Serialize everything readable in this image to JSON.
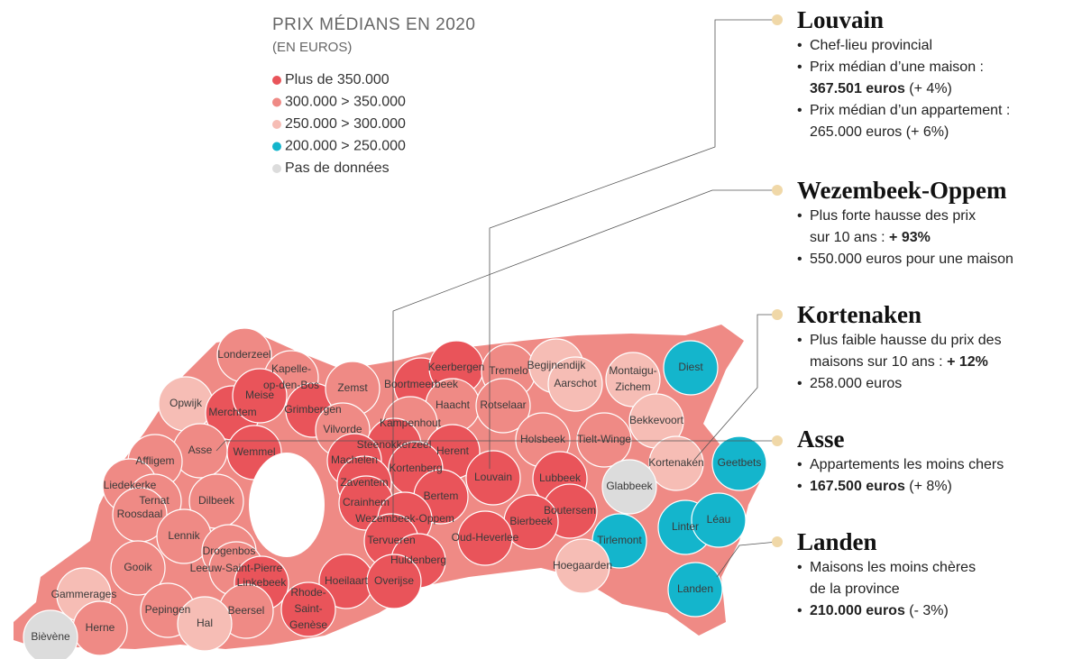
{
  "legend": {
    "title": "PRIX MÉDIANS EN 2020",
    "subtitle": "(EN EUROS)",
    "items": [
      {
        "label": "Plus de 350.000",
        "color": "#e9545a"
      },
      {
        "label": "300.000 > 350.000",
        "color": "#ef8a85"
      },
      {
        "label": "250.000 > 300.000",
        "color": "#f6bdb5"
      },
      {
        "label": "200.000 > 250.000",
        "color": "#14b5cc"
      },
      {
        "label": "Pas de données",
        "color": "#dcdcdc"
      }
    ]
  },
  "municipalities": [
    {
      "lines": [
        "Londerzeel"
      ],
      "color": "#ef8a85"
    },
    {
      "lines": [
        "Kapelle-",
        "op-den-Bos"
      ],
      "color": "#ef8a85"
    },
    {
      "lines": [
        "Opwijk"
      ],
      "color": "#f6bdb5"
    },
    {
      "lines": [
        "Merchtem"
      ],
      "color": "#e9545a"
    },
    {
      "lines": [
        "Meise"
      ],
      "color": "#e9545a"
    },
    {
      "lines": [
        "Grimbergen"
      ],
      "color": "#e9545a"
    },
    {
      "lines": [
        "Zemst"
      ],
      "color": "#ef8a85"
    },
    {
      "lines": [
        "Boortmeerbeek"
      ],
      "color": "#e9545a"
    },
    {
      "lines": [
        "Keerbergen"
      ],
      "color": "#e9545a"
    },
    {
      "lines": [
        "Tremelo"
      ],
      "color": "#ef8a85"
    },
    {
      "lines": [
        "Begijnendijk"
      ],
      "color": "#f6bdb5"
    },
    {
      "lines": [
        "Aarschot"
      ],
      "color": "#f6bdb5"
    },
    {
      "lines": [
        "Montaigu-",
        "Zichem"
      ],
      "color": "#f6bdb5"
    },
    {
      "lines": [
        "Diest"
      ],
      "color": "#14b5cc"
    },
    {
      "lines": [
        "Haacht"
      ],
      "color": "#ef8a85"
    },
    {
      "lines": [
        "Rotselaar"
      ],
      "color": "#ef8a85"
    },
    {
      "lines": [
        "Bekkevoort"
      ],
      "color": "#f6bdb5"
    },
    {
      "lines": [
        "Vilvorde"
      ],
      "color": "#ef8a85"
    },
    {
      "lines": [
        "Kampenhout"
      ],
      "color": "#ef8a85"
    },
    {
      "lines": [
        "Wemmel"
      ],
      "color": "#e9545a"
    },
    {
      "lines": [
        "Asse"
      ],
      "color": "#ef8a85"
    },
    {
      "lines": [
        "Affligem"
      ],
      "color": "#ef8a85"
    },
    {
      "lines": [
        "Steenokkerzeel"
      ],
      "color": "#e9545a"
    },
    {
      "lines": [
        "Machelen"
      ],
      "color": "#e9545a"
    },
    {
      "lines": [
        "Herent"
      ],
      "color": "#e9545a"
    },
    {
      "lines": [
        "Holsbeek"
      ],
      "color": "#ef8a85"
    },
    {
      "lines": [
        "Tielt-Winge"
      ],
      "color": "#ef8a85"
    },
    {
      "lines": [
        "Kortenberg"
      ],
      "color": "#e9545a"
    },
    {
      "lines": [
        "Louvain"
      ],
      "color": "#e9545a"
    },
    {
      "lines": [
        "Lubbeek"
      ],
      "color": "#e9545a"
    },
    {
      "lines": [
        "Kortenaken"
      ],
      "color": "#f6bdb5"
    },
    {
      "lines": [
        "Geetbets"
      ],
      "color": "#14b5cc"
    },
    {
      "lines": [
        "Glabbeek"
      ],
      "color": "#dcdcdc"
    },
    {
      "lines": [
        "Liedekerke"
      ],
      "color": "#ef8a85"
    },
    {
      "lines": [
        "Zaventem"
      ],
      "color": "#e9545a"
    },
    {
      "lines": [
        "Crainhem"
      ],
      "color": "#e9545a"
    },
    {
      "lines": [
        "Bertem"
      ],
      "color": "#e9545a"
    },
    {
      "lines": [
        "Ternat"
      ],
      "color": "#ef8a85"
    },
    {
      "lines": [
        "Dilbeek"
      ],
      "color": "#ef8a85"
    },
    {
      "lines": [
        "Roosdaal"
      ],
      "color": "#ef8a85"
    },
    {
      "lines": [
        "Wezembeek-Oppem"
      ],
      "color": "#e9545a"
    },
    {
      "lines": [
        "Boutersem"
      ],
      "color": "#e9545a"
    },
    {
      "lines": [
        "Bierbeek"
      ],
      "color": "#e9545a"
    },
    {
      "lines": [
        "Linter"
      ],
      "color": "#14b5cc"
    },
    {
      "lines": [
        "Léau"
      ],
      "color": "#14b5cc"
    },
    {
      "lines": [
        "Tirlemont"
      ],
      "color": "#14b5cc"
    },
    {
      "lines": [
        "Tervueren"
      ],
      "color": "#e9545a"
    },
    {
      "lines": [
        "Oud-Heverlee"
      ],
      "color": "#e9545a"
    },
    {
      "lines": [
        "Lennik"
      ],
      "color": "#ef8a85"
    },
    {
      "lines": [
        "Drogenbos"
      ],
      "color": "#ef8a85"
    },
    {
      "lines": [
        "Leeuw-Saint-Pierre"
      ],
      "color": "#ef8a85"
    },
    {
      "lines": [
        "Gooik"
      ],
      "color": "#ef8a85"
    },
    {
      "lines": [
        "Huldenberg"
      ],
      "color": "#e9545a"
    },
    {
      "lines": [
        "Hoegaarden"
      ],
      "color": "#f6bdb5"
    },
    {
      "lines": [
        "Linkebeek"
      ],
      "color": "#e9545a"
    },
    {
      "lines": [
        "Hoeilaart"
      ],
      "color": "#e9545a"
    },
    {
      "lines": [
        "Overijse"
      ],
      "color": "#e9545a"
    },
    {
      "lines": [
        "Landen"
      ],
      "color": "#14b5cc"
    },
    {
      "lines": [
        "Gammerages"
      ],
      "color": "#f6bdb5"
    },
    {
      "lines": [
        "Rhode-",
        "Saint-",
        "Genèse"
      ],
      "color": "#e9545a"
    },
    {
      "lines": [
        "Pepingen"
      ],
      "color": "#ef8a85"
    },
    {
      "lines": [
        "Beersel"
      ],
      "color": "#ef8a85"
    },
    {
      "lines": [
        "Hal"
      ],
      "color": "#f6bdb5"
    },
    {
      "lines": [
        "Herne"
      ],
      "color": "#ef8a85"
    },
    {
      "lines": [
        "Bièvène"
      ],
      "color": "#dcdcdc"
    }
  ],
  "annotations": [
    {
      "title": "Louvain",
      "bullets": [
        [
          [
            {
              "text": "Chef-lieu provincial"
            }
          ]
        ],
        [
          [
            {
              "text": "Prix médian d’une maison :"
            }
          ],
          [
            {
              "text": "367.501 euros",
              "bold": true
            },
            {
              "text": " (+ 4%)"
            }
          ]
        ],
        [
          [
            {
              "text": "Prix médian d’un appartement :"
            }
          ],
          [
            {
              "text": "265.000 euros (+ 6%)"
            }
          ]
        ]
      ]
    },
    {
      "title": "Wezembeek-Oppem",
      "bullets": [
        [
          [
            {
              "text": "Plus forte hausse des prix"
            }
          ],
          [
            {
              "text": "sur 10 ans : "
            },
            {
              "text": "+ 93%",
              "bold": true
            }
          ]
        ],
        [
          [
            {
              "text": "550.000 euros pour une maison"
            }
          ]
        ]
      ]
    },
    {
      "title": "Kortenaken",
      "bullets": [
        [
          [
            {
              "text": "Plus faible hausse du prix des"
            }
          ],
          [
            {
              "text": "maisons sur 10 ans : "
            },
            {
              "text": "+ 12%",
              "bold": true
            }
          ]
        ],
        [
          [
            {
              "text": "258.000 euros"
            }
          ]
        ]
      ]
    },
    {
      "title": "Asse",
      "bullets": [
        [
          [
            {
              "text": "Appartements les moins chers"
            }
          ]
        ],
        [
          [
            {
              "text": "167.500 euros",
              "bold": true
            },
            {
              "text": " (+ 8%)"
            }
          ]
        ]
      ]
    },
    {
      "title": "Landen",
      "bullets": [
        [
          [
            {
              "text": "Maisons les moins chères"
            }
          ],
          [
            {
              "text": "de la province"
            }
          ]
        ],
        [
          [
            {
              "text": "210.000 euros",
              "bold": true
            },
            {
              "text": " (- 3%)"
            }
          ]
        ]
      ]
    }
  ]
}
